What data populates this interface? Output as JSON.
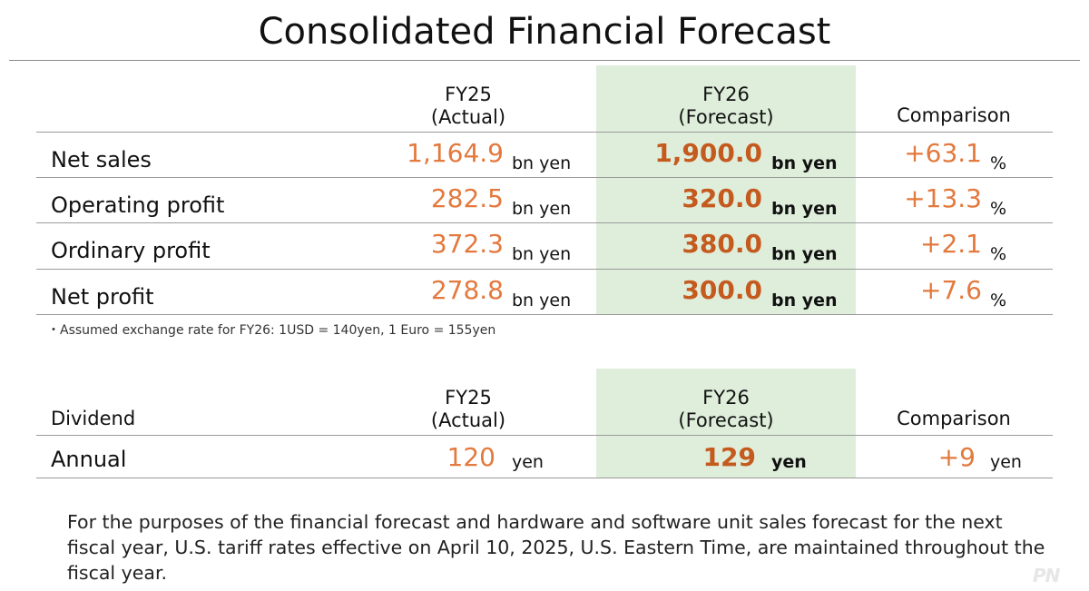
{
  "title": "Consolidated Financial Forecast",
  "forecast_table": {
    "headers": {
      "fy25_line1": "FY25",
      "fy25_line2": "(Actual)",
      "fy26_line1": "FY26",
      "fy26_line2": "(Forecast)",
      "comparison": "Comparison"
    },
    "rows": [
      {
        "label": "Net sales",
        "fy25": "1,164.9",
        "fy25_unit": "bn yen",
        "fy26": "1,900.0",
        "fy26_unit": "bn yen",
        "comparison": "+63.1",
        "comparison_unit": "%"
      },
      {
        "label": "Operating profit",
        "fy25": "282.5",
        "fy25_unit": "bn yen",
        "fy26": "320.0",
        "fy26_unit": "bn yen",
        "comparison": "+13.3",
        "comparison_unit": "%"
      },
      {
        "label": "Ordinary profit",
        "fy25": "372.3",
        "fy25_unit": "bn yen",
        "fy26": "380.0",
        "fy26_unit": "bn yen",
        "comparison": "+2.1",
        "comparison_unit": "%"
      },
      {
        "label": "Net profit",
        "fy25": "278.8",
        "fy25_unit": "bn yen",
        "fy26": "300.0",
        "fy26_unit": "bn yen",
        "comparison": "+7.6",
        "comparison_unit": "%"
      }
    ],
    "footnote": "・Assumed exchange rate for FY26: 1USD = 140yen, 1 Euro = 155yen"
  },
  "dividend_table": {
    "headers": {
      "label": "Dividend",
      "fy25_line1": "FY25",
      "fy25_line2": "(Actual)",
      "fy26_line1": "FY26",
      "fy26_line2": "(Forecast)",
      "comparison": "Comparison"
    },
    "rows": [
      {
        "label": "Annual",
        "fy25": "120",
        "fy25_unit": "yen",
        "fy26": "129",
        "fy26_unit": "yen",
        "comparison": "+9",
        "comparison_unit": "yen"
      }
    ]
  },
  "note": "For the purposes of the financial forecast and hardware and software unit sales forecast for the next fiscal year, U.S. tariff rates effective on April 10, 2025, U.S. Eastern Time, are maintained throughout the fiscal year.",
  "watermark": "PN",
  "colors": {
    "forecast_highlight": "#dfeedb",
    "actual_value": "#e3793d",
    "forecast_value": "#c55a1e"
  }
}
